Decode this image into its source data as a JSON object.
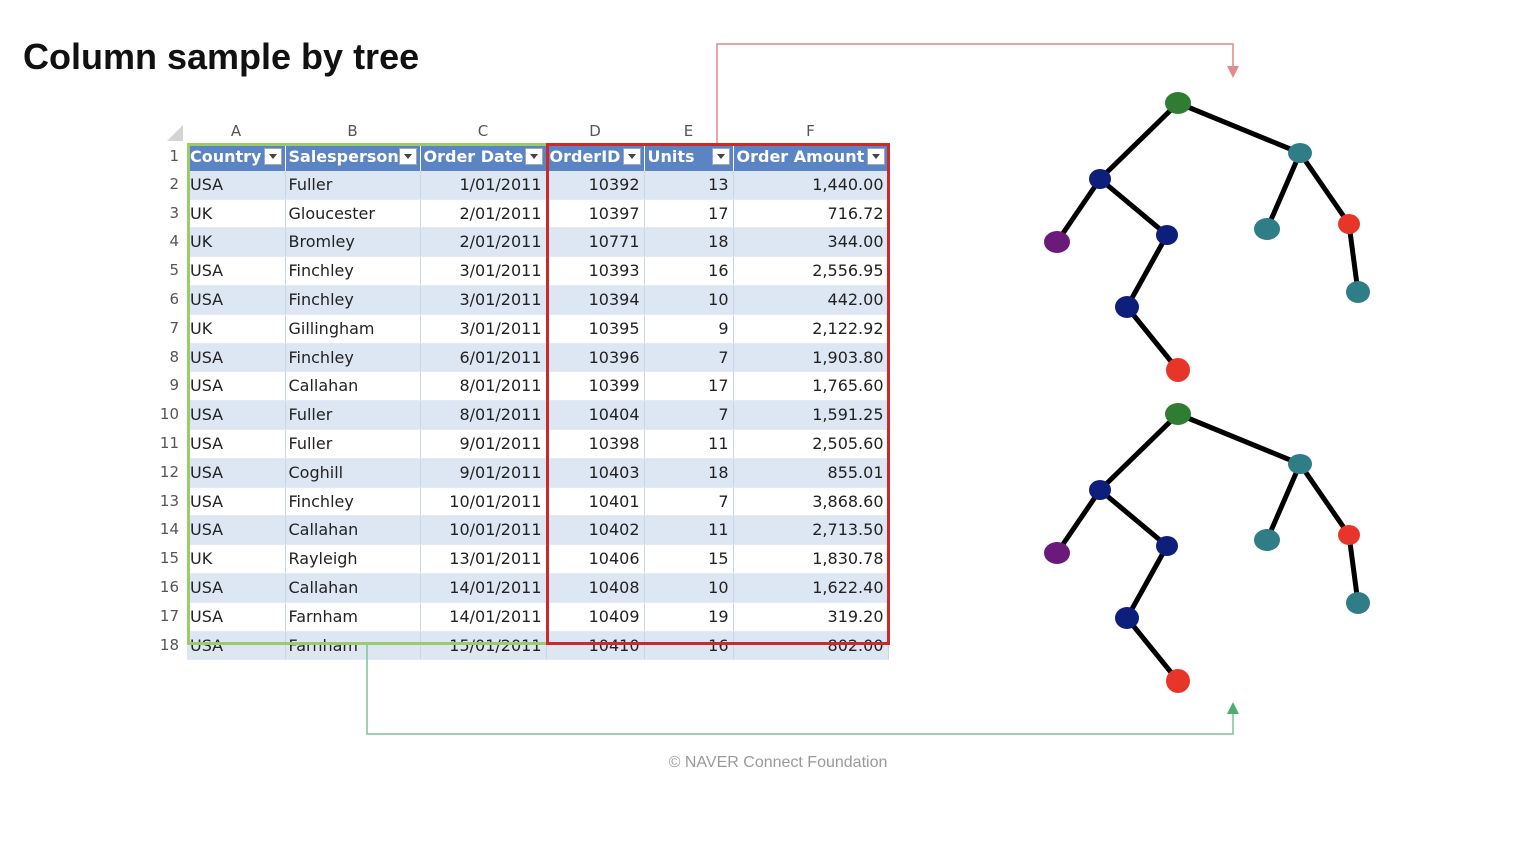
{
  "title": "Column sample by tree",
  "footer": "©  NAVER Connect Foundation",
  "colors": {
    "header_fill": "#5b84c4",
    "band_fill": "#dde7f4",
    "sampled_rows_box": "#9ccb6c",
    "sampled_cols_box": "#cc2a2a",
    "node_green": "#2e7d32",
    "node_navy": "#0d1f7a",
    "node_teal": "#2e7d87",
    "node_red": "#e8352a",
    "node_purple": "#6a1b7a"
  },
  "sheet": {
    "column_letters": [
      "A",
      "B",
      "C",
      "D",
      "E",
      "F"
    ],
    "headers": [
      "Country",
      "Salesperson",
      "Order Date",
      "OrderID",
      "Units",
      "Order Amount"
    ],
    "rows": [
      [
        "2",
        "USA",
        "Fuller",
        "1/01/2011",
        "10392",
        "13",
        "1,440.00"
      ],
      [
        "3",
        "UK",
        "Gloucester",
        "2/01/2011",
        "10397",
        "17",
        "716.72"
      ],
      [
        "4",
        "UK",
        "Bromley",
        "2/01/2011",
        "10771",
        "18",
        "344.00"
      ],
      [
        "5",
        "USA",
        "Finchley",
        "3/01/2011",
        "10393",
        "16",
        "2,556.95"
      ],
      [
        "6",
        "USA",
        "Finchley",
        "3/01/2011",
        "10394",
        "10",
        "442.00"
      ],
      [
        "7",
        "UK",
        "Gillingham",
        "3/01/2011",
        "10395",
        "9",
        "2,122.92"
      ],
      [
        "8",
        "USA",
        "Finchley",
        "6/01/2011",
        "10396",
        "7",
        "1,903.80"
      ],
      [
        "9",
        "USA",
        "Callahan",
        "8/01/2011",
        "10399",
        "17",
        "1,765.60"
      ],
      [
        "10",
        "USA",
        "Fuller",
        "8/01/2011",
        "10404",
        "7",
        "1,591.25"
      ],
      [
        "11",
        "USA",
        "Fuller",
        "9/01/2011",
        "10398",
        "11",
        "2,505.60"
      ],
      [
        "12",
        "USA",
        "Coghill",
        "9/01/2011",
        "10403",
        "18",
        "855.01"
      ],
      [
        "13",
        "USA",
        "Finchley",
        "10/01/2011",
        "10401",
        "7",
        "3,868.60"
      ],
      [
        "14",
        "USA",
        "Callahan",
        "10/01/2011",
        "10402",
        "11",
        "2,713.50"
      ],
      [
        "15",
        "UK",
        "Rayleigh",
        "13/01/2011",
        "10406",
        "15",
        "1,830.78"
      ],
      [
        "16",
        "USA",
        "Callahan",
        "14/01/2011",
        "10408",
        "10",
        "1,622.40"
      ],
      [
        "17",
        "USA",
        "Farnham",
        "14/01/2011",
        "10409",
        "19",
        "319.20"
      ],
      [
        "18",
        "USA",
        "Farnham",
        "15/01/2011",
        "10410",
        "16",
        "802.00"
      ]
    ],
    "header_row_number": "1"
  }
}
